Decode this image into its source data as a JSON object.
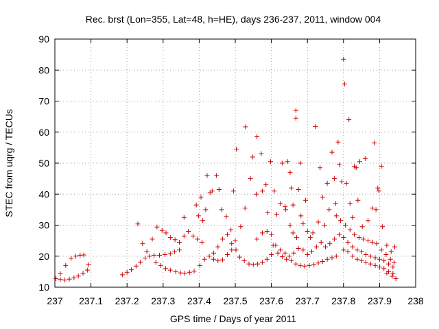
{
  "chart_data": {
    "type": "scatter",
    "title": "Rec. brst (Lon=355, Lat=48, h=HE), days 236-237, 2011, window 004",
    "xlabel": "GPS time / Days of year 2011",
    "ylabel": "STEC from uqrg / TECUs",
    "xlim": [
      237,
      238
    ],
    "ylim": [
      10,
      90
    ],
    "xticks": [
      "237",
      "237.1",
      "237.2",
      "237.3",
      "237.4",
      "237.5",
      "237.6",
      "237.7",
      "237.8",
      "237.9",
      "238"
    ],
    "yticks": [
      "10",
      "20",
      "30",
      "40",
      "50",
      "60",
      "70",
      "80",
      "90"
    ],
    "grid": true,
    "legend": "none",
    "marker": "plus",
    "color": "#cc0000",
    "series": [
      {
        "points": [
          [
            237.003,
            12.8
          ],
          [
            237.015,
            12.5
          ],
          [
            237.027,
            12.3
          ],
          [
            237.04,
            12.6
          ],
          [
            237.053,
            13.0
          ],
          [
            237.065,
            13.6
          ],
          [
            237.078,
            14.5
          ],
          [
            237.09,
            15.5
          ],
          [
            237.015,
            14.3
          ],
          [
            237.03,
            17.0
          ],
          [
            237.045,
            19.3
          ],
          [
            237.058,
            20.0
          ],
          [
            237.07,
            20.3
          ],
          [
            237.08,
            20.4
          ],
          [
            237.093,
            17.3
          ],
          [
            237.187,
            14.0
          ],
          [
            237.2,
            14.8
          ],
          [
            237.212,
            15.6
          ],
          [
            237.225,
            16.8
          ],
          [
            237.237,
            18.1
          ],
          [
            237.25,
            19.4
          ],
          [
            237.262,
            20.0
          ],
          [
            237.275,
            20.3
          ],
          [
            237.29,
            20.3
          ],
          [
            237.305,
            20.5
          ],
          [
            237.32,
            20.8
          ],
          [
            237.332,
            21.4
          ],
          [
            237.345,
            22.0
          ],
          [
            237.23,
            30.4
          ],
          [
            237.243,
            24.0
          ],
          [
            237.255,
            21.5
          ],
          [
            237.27,
            25.5
          ],
          [
            237.283,
            29.4
          ],
          [
            237.297,
            28.3
          ],
          [
            237.308,
            27.5
          ],
          [
            237.32,
            26.0
          ],
          [
            237.333,
            25.3
          ],
          [
            237.345,
            24.5
          ],
          [
            237.358,
            26.5
          ],
          [
            237.28,
            18.0
          ],
          [
            237.293,
            17.0
          ],
          [
            237.307,
            16.0
          ],
          [
            237.32,
            15.5
          ],
          [
            237.335,
            15.0
          ],
          [
            237.348,
            14.6
          ],
          [
            237.36,
            14.5
          ],
          [
            237.373,
            14.8
          ],
          [
            237.386,
            15.2
          ],
          [
            237.358,
            32.5
          ],
          [
            237.37,
            28.0
          ],
          [
            237.383,
            26.5
          ],
          [
            237.395,
            25.5
          ],
          [
            237.408,
            24.5
          ],
          [
            237.398,
            33.0
          ],
          [
            237.392,
            36.5
          ],
          [
            237.405,
            39.0
          ],
          [
            237.41,
            31.5
          ],
          [
            237.418,
            35.0
          ],
          [
            237.422,
            46.0
          ],
          [
            237.43,
            40.5
          ],
          [
            237.436,
            41.0
          ],
          [
            237.448,
            46.0
          ],
          [
            237.455,
            41.5
          ],
          [
            237.462,
            35.0
          ],
          [
            237.475,
            32.8
          ],
          [
            237.488,
            28.5
          ],
          [
            237.495,
            41.0
          ],
          [
            237.402,
            17.0
          ],
          [
            237.415,
            19.0
          ],
          [
            237.428,
            20.0
          ],
          [
            237.44,
            21.0
          ],
          [
            237.452,
            23.0
          ],
          [
            237.465,
            25.5
          ],
          [
            237.478,
            27.0
          ],
          [
            237.49,
            24.0
          ],
          [
            237.5,
            25.0
          ],
          [
            237.44,
            19.0
          ],
          [
            237.452,
            18.5
          ],
          [
            237.465,
            18.8
          ],
          [
            237.478,
            20.5
          ],
          [
            237.49,
            22.0
          ],
          [
            237.502,
            22.0
          ],
          [
            237.512,
            19.7
          ],
          [
            237.525,
            18.5
          ],
          [
            237.538,
            17.5
          ],
          [
            237.55,
            17.3
          ],
          [
            237.562,
            17.5
          ],
          [
            237.575,
            18.0
          ],
          [
            237.588,
            19.0
          ],
          [
            237.6,
            20.5
          ],
          [
            237.503,
            54.5
          ],
          [
            237.515,
            29.5
          ],
          [
            237.527,
            35.5
          ],
          [
            237.528,
            61.7
          ],
          [
            237.542,
            45.0
          ],
          [
            237.548,
            52.0
          ],
          [
            237.558,
            40.0
          ],
          [
            237.56,
            58.5
          ],
          [
            237.572,
            53.0
          ],
          [
            237.575,
            41.0
          ],
          [
            237.585,
            43.0
          ],
          [
            237.59,
            34.0
          ],
          [
            237.598,
            50.5
          ],
          [
            237.608,
            41.0
          ],
          [
            237.615,
            33.5
          ],
          [
            237.625,
            37.0
          ],
          [
            237.63,
            50.0
          ],
          [
            237.638,
            36.0
          ],
          [
            237.645,
            50.5
          ],
          [
            237.652,
            47.0
          ],
          [
            237.655,
            42.0
          ],
          [
            237.66,
            36.5
          ],
          [
            237.668,
            64.5
          ],
          [
            237.668,
            67.0
          ],
          [
            237.675,
            41.5
          ],
          [
            237.68,
            50.0
          ],
          [
            237.56,
            25.5
          ],
          [
            237.575,
            27.5
          ],
          [
            237.588,
            28.0
          ],
          [
            237.6,
            27.0
          ],
          [
            237.612,
            23.5
          ],
          [
            237.625,
            22.0
          ],
          [
            237.638,
            21.0
          ],
          [
            237.65,
            20.0
          ],
          [
            237.662,
            21.0
          ],
          [
            237.675,
            22.5
          ],
          [
            237.605,
            23.5
          ],
          [
            237.618,
            21.0
          ],
          [
            237.63,
            19.8
          ],
          [
            237.642,
            19.0
          ],
          [
            237.655,
            18.5
          ],
          [
            237.668,
            17.5
          ],
          [
            237.68,
            17.0
          ],
          [
            237.692,
            16.8
          ],
          [
            237.705,
            17.0
          ],
          [
            237.718,
            17.3
          ],
          [
            237.73,
            17.8
          ],
          [
            237.742,
            18.3
          ],
          [
            237.755,
            19.0
          ],
          [
            237.768,
            19.5
          ],
          [
            237.78,
            20.0
          ],
          [
            237.64,
            35.0
          ],
          [
            237.652,
            30.0
          ],
          [
            237.66,
            27.5
          ],
          [
            237.67,
            26.0
          ],
          [
            237.682,
            33.0
          ],
          [
            237.688,
            30.5
          ],
          [
            237.695,
            38.0
          ],
          [
            237.7,
            28.0
          ],
          [
            237.708,
            26.0
          ],
          [
            237.715,
            27.5
          ],
          [
            237.722,
            61.8
          ],
          [
            237.73,
            31.0
          ],
          [
            237.735,
            48.5
          ],
          [
            237.742,
            39.0
          ],
          [
            237.748,
            30.0
          ],
          [
            237.755,
            43.5
          ],
          [
            237.76,
            35.0
          ],
          [
            237.768,
            53.5
          ],
          [
            237.775,
            45.0
          ],
          [
            237.778,
            37.0
          ],
          [
            237.785,
            56.8
          ],
          [
            237.788,
            49.5
          ],
          [
            237.795,
            44.0
          ],
          [
            237.8,
            83.5
          ],
          [
            237.803,
            75.5
          ],
          [
            237.808,
            43.5
          ],
          [
            237.815,
            64.0
          ],
          [
            237.818,
            37.0
          ],
          [
            237.825,
            32.5
          ],
          [
            237.83,
            49.0
          ],
          [
            237.835,
            48.5
          ],
          [
            237.84,
            38.0
          ],
          [
            237.845,
            50.5
          ],
          [
            237.852,
            29.5
          ],
          [
            237.86,
            51.5
          ],
          [
            237.868,
            31.5
          ],
          [
            237.88,
            35.5
          ],
          [
            237.885,
            56.5
          ],
          [
            237.895,
            42.0
          ],
          [
            237.905,
            49.0
          ],
          [
            237.688,
            22.0
          ],
          [
            237.7,
            20.5
          ],
          [
            237.712,
            21.5
          ],
          [
            237.725,
            23.0
          ],
          [
            237.738,
            24.5
          ],
          [
            237.75,
            23.0
          ],
          [
            237.762,
            24.0
          ],
          [
            237.775,
            25.5
          ],
          [
            237.788,
            27.0
          ],
          [
            237.8,
            22.0
          ],
          [
            237.812,
            21.5
          ],
          [
            237.825,
            20.0
          ],
          [
            237.838,
            19.0
          ],
          [
            237.85,
            18.5
          ],
          [
            237.862,
            18.0
          ],
          [
            237.875,
            17.5
          ],
          [
            237.888,
            17.0
          ],
          [
            237.9,
            16.5
          ],
          [
            237.912,
            16.0
          ],
          [
            237.925,
            15.0
          ],
          [
            237.937,
            14.5
          ],
          [
            237.78,
            33.0
          ],
          [
            237.792,
            31.5
          ],
          [
            237.805,
            30.0
          ],
          [
            237.818,
            28.5
          ],
          [
            237.83,
            27.0
          ],
          [
            237.843,
            26.0
          ],
          [
            237.855,
            25.5
          ],
          [
            237.868,
            25.0
          ],
          [
            237.88,
            24.5
          ],
          [
            237.892,
            24.0
          ],
          [
            237.905,
            22.0
          ],
          [
            237.918,
            20.5
          ],
          [
            237.93,
            19.0
          ],
          [
            237.94,
            18.0
          ],
          [
            237.8,
            26.0
          ],
          [
            237.812,
            24.5
          ],
          [
            237.825,
            23.0
          ],
          [
            237.838,
            22.0
          ],
          [
            237.85,
            21.5
          ],
          [
            237.862,
            20.5
          ],
          [
            237.875,
            20.0
          ],
          [
            237.888,
            19.5
          ],
          [
            237.9,
            19.0
          ],
          [
            237.912,
            18.5
          ],
          [
            237.925,
            17.5
          ],
          [
            237.937,
            16.5
          ],
          [
            237.89,
            35.0
          ],
          [
            237.898,
            41.0
          ],
          [
            237.908,
            29.5
          ],
          [
            237.92,
            23.5
          ],
          [
            237.932,
            21.5
          ],
          [
            237.942,
            23.0
          ],
          [
            237.92,
            14.5
          ],
          [
            237.935,
            13.5
          ],
          [
            237.945,
            12.8
          ]
        ]
      }
    ]
  }
}
